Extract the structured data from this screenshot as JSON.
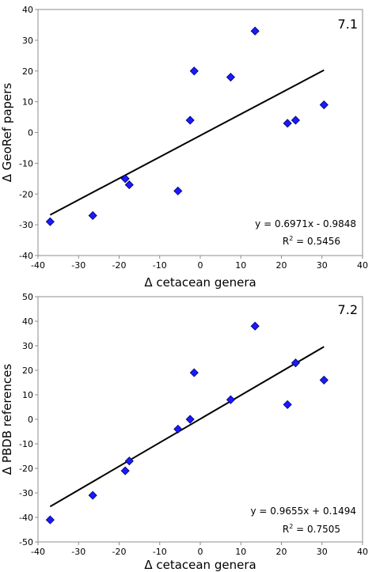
{
  "chart_data": [
    {
      "type": "scatter",
      "panel_label": "7.1",
      "xlabel": "Δ cetacean genera",
      "ylabel": "Δ GeoRef papers",
      "xlim": [
        -40,
        40
      ],
      "ylim": [
        -40,
        40
      ],
      "xticks": [
        -40,
        -30,
        -20,
        -10,
        0,
        10,
        20,
        30,
        40
      ],
      "yticks": [
        -40,
        -30,
        -20,
        -10,
        0,
        10,
        20,
        30,
        40
      ],
      "marker_color": "#1a1aff",
      "points": [
        {
          "x": -37,
          "y": -29
        },
        {
          "x": -26.5,
          "y": -27
        },
        {
          "x": -18.5,
          "y": -15
        },
        {
          "x": -17.5,
          "y": -17
        },
        {
          "x": -5.5,
          "y": -19
        },
        {
          "x": -2.5,
          "y": 4
        },
        {
          "x": -1.5,
          "y": 20
        },
        {
          "x": 7.5,
          "y": 18
        },
        {
          "x": 13.5,
          "y": 33
        },
        {
          "x": 21.5,
          "y": 3
        },
        {
          "x": 23.5,
          "y": 4
        },
        {
          "x": 30.5,
          "y": 9
        }
      ],
      "trendline": {
        "slope": 0.6971,
        "intercept": -0.9848,
        "x_range": [
          -37,
          30.5
        ]
      },
      "equation": "y = 0.6971x - 0.9848",
      "r2_label": "R",
      "r2_sup": "2",
      "r2_value": " = 0.5456"
    },
    {
      "type": "scatter",
      "panel_label": "7.2",
      "xlabel": "Δ cetacean genera",
      "ylabel": "Δ PBDB references",
      "xlim": [
        -40,
        40
      ],
      "ylim": [
        -50,
        50
      ],
      "xticks": [
        -40,
        -30,
        -20,
        -10,
        0,
        10,
        20,
        30,
        40
      ],
      "yticks": [
        -50,
        -40,
        -30,
        -20,
        -10,
        0,
        10,
        20,
        30,
        40,
        50
      ],
      "marker_color": "#1a1aff",
      "points": [
        {
          "x": -37,
          "y": -41
        },
        {
          "x": -26.5,
          "y": -31
        },
        {
          "x": -18.5,
          "y": -21
        },
        {
          "x": -17.5,
          "y": -17
        },
        {
          "x": -5.5,
          "y": -4
        },
        {
          "x": -2.5,
          "y": 0
        },
        {
          "x": -1.5,
          "y": 19
        },
        {
          "x": 7.5,
          "y": 8
        },
        {
          "x": 13.5,
          "y": 38
        },
        {
          "x": 21.5,
          "y": 6
        },
        {
          "x": 23.5,
          "y": 23
        },
        {
          "x": 30.5,
          "y": 16
        }
      ],
      "trendline": {
        "slope": 0.9655,
        "intercept": 0.1494,
        "x_range": [
          -37,
          30.5
        ]
      },
      "equation": "y = 0.9655x + 0.1494",
      "r2_label": "R",
      "r2_sup": "2",
      "r2_value": " = 0.7505"
    }
  ]
}
